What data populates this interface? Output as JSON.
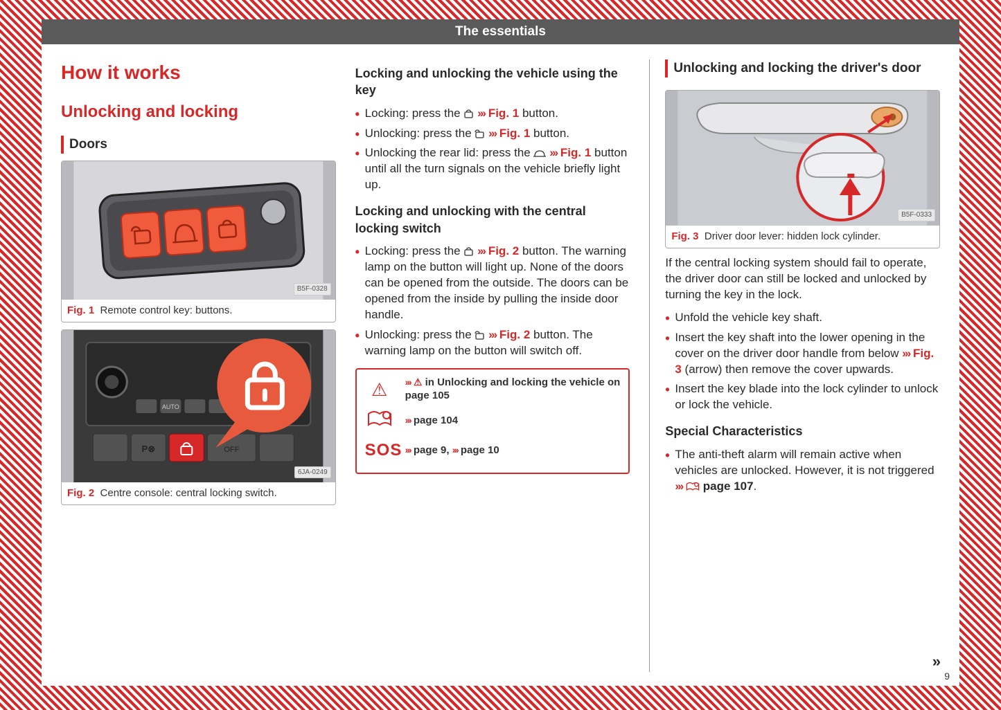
{
  "header": {
    "title": "The essentials"
  },
  "page_number": "9",
  "continue_marker": "»",
  "col1": {
    "h1": "How it works",
    "h2": "Unlocking and locking",
    "section_label": "Doors",
    "fig1": {
      "label": "Fig. 1",
      "caption": "Remote control key: buttons.",
      "badge": "B5F-0328"
    },
    "fig2": {
      "label": "Fig. 2",
      "caption": "Centre console: central locking switch.",
      "badge": "6JA-0249"
    }
  },
  "col2": {
    "h4_a": "Locking and unlocking the vehicle using the key",
    "bullets_a": [
      {
        "pre": "Locking: press the ",
        "icon": "lock",
        "ref": "Fig. 1",
        "post": " button."
      },
      {
        "pre": "Unlocking: press the ",
        "icon": "unlock",
        "ref": "Fig. 1",
        "post": " button."
      },
      {
        "pre": "Unlocking the rear lid: press the ",
        "icon": "trunk",
        "ref": "Fig. 1",
        "post": " button until all the turn signals on the vehicle briefly light up."
      }
    ],
    "h4_b": "Locking and unlocking with the central locking switch",
    "bullets_b": [
      {
        "pre": "Locking: press the ",
        "icon": "lock",
        "ref": "Fig. 2",
        "post": " button. The warning lamp on the button will light up. None of the doors can be opened from the outside. The doors can be opened from the inside by pulling the inside door handle."
      },
      {
        "pre": "Unlocking: press the ",
        "icon": "unlock",
        "ref": "Fig. 2",
        "post": " button. The warning lamp on the button will switch off."
      }
    ],
    "refbox": {
      "row1_pre": "»",
      "row1_text": "in Unlocking and locking the vehicle on page 105",
      "row2": "page 104",
      "row3": "page 9,",
      "row3b": "page 10",
      "sos": "SOS"
    }
  },
  "col3": {
    "section_label": "Unlocking and locking the driver's door",
    "fig3": {
      "label": "Fig. 3",
      "caption": "Driver door lever: hidden lock cylinder.",
      "badge": "B5F-0333"
    },
    "para1": "If the central locking system should fail to operate, the driver door can still be locked and unlocked by turning the key in the lock.",
    "bullets": [
      {
        "text": "Unfold the vehicle key shaft."
      },
      {
        "pre": "Insert the key shaft into the lower opening in the cover on the driver door handle from below ",
        "ref": "Fig. 3",
        "post": " (arrow) then remove the cover upwards."
      },
      {
        "text": "Insert the key blade into the lock cylinder to unlock or lock the vehicle."
      }
    ],
    "h4": "Special Characteristics",
    "bullet_special_pre": "The anti-theft alarm will remain active when vehicles are unlocked. However, it is not triggered ",
    "bullet_special_ref": "page 107",
    "bullet_special_post": "."
  },
  "colors": {
    "accent": "#d62828",
    "header_bg": "#5a5a5a",
    "text": "#2a2a2a",
    "fig_border": "#aaaaaa",
    "key_body": "#5f5f63",
    "key_button": "#f05b3d",
    "console_bg": "#3a3a3a",
    "handle_bg": "#b2b6b9"
  }
}
